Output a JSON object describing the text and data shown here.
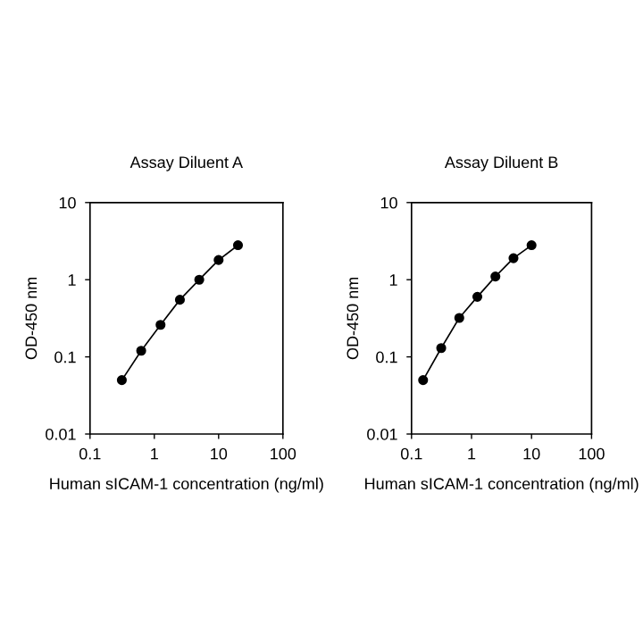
{
  "chart_data": [
    {
      "type": "line",
      "title": "Assay Diluent A",
      "xlabel": "Human sICAM-1 concentration (ng/ml)",
      "ylabel": "OD-450 nm",
      "log": "xy",
      "marker": "circle",
      "line_style": "solid",
      "grid": false,
      "legend": false,
      "x": [
        0.3125,
        0.625,
        1.25,
        2.5,
        5,
        10,
        20
      ],
      "series": [
        {
          "color": "#000000",
          "values": [
            0.05,
            0.12,
            0.26,
            0.55,
            1.0,
            1.8,
            2.8
          ]
        }
      ],
      "xlim": [
        0.1,
        100
      ],
      "xticks": [
        0.1,
        1,
        10,
        100
      ],
      "ylim": [
        0.01,
        10
      ],
      "yticks": [
        0.01,
        0.1,
        1,
        10
      ]
    },
    {
      "type": "line",
      "title": "Assay Diluent B",
      "xlabel": "Human sICAM-1 concentration (ng/ml)",
      "ylabel": "OD-450 nm",
      "log": "xy",
      "marker": "circle",
      "line_style": "solid",
      "grid": false,
      "legend": false,
      "x": [
        0.156,
        0.3125,
        0.625,
        1.25,
        2.5,
        5,
        10
      ],
      "series": [
        {
          "color": "#000000",
          "values": [
            0.05,
            0.13,
            0.32,
            0.6,
            1.1,
            1.9,
            2.8
          ]
        }
      ],
      "xlim": [
        0.1,
        100
      ],
      "xticks": [
        0.1,
        1,
        10,
        100
      ],
      "ylim": [
        0.01,
        10
      ],
      "yticks": [
        0.01,
        0.1,
        1,
        10
      ]
    }
  ]
}
